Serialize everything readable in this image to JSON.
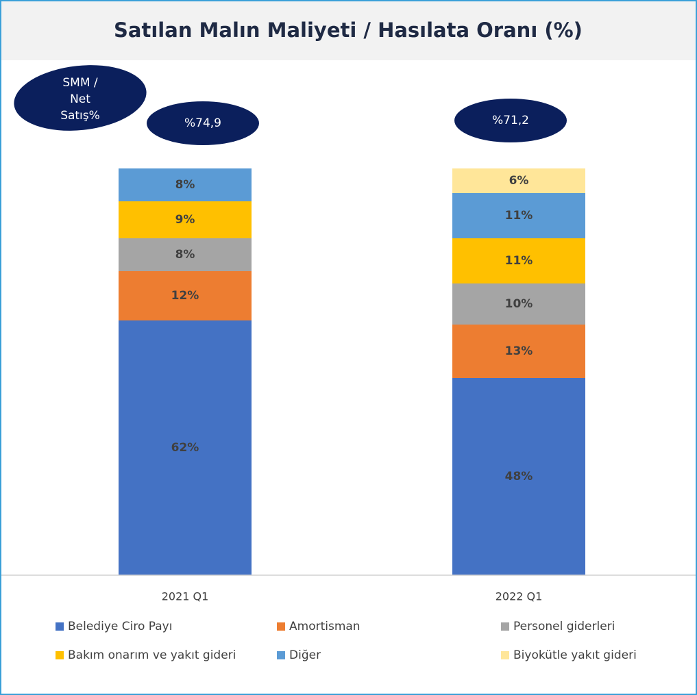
{
  "chart_data": {
    "type": "stacked_bar",
    "title": "Satılan Malın Maliyeti / Hasılata Oranı (%)",
    "categories": [
      "2021 Q1",
      "2022 Q1"
    ],
    "series": [
      {
        "name": "Belediye Ciro Payı",
        "color": "#4472c4",
        "values": [
          62,
          48
        ],
        "value_labels": [
          "62%",
          "48%"
        ]
      },
      {
        "name": "Amortisman",
        "color": "#ed7d31",
        "values": [
          12,
          13
        ],
        "value_labels": [
          "12%",
          "13%"
        ]
      },
      {
        "name": "Personel giderleri",
        "color": "#a5a5a5",
        "values": [
          8,
          10
        ],
        "value_labels": [
          "8%",
          "10%"
        ]
      },
      {
        "name": "Bakım onarım ve yakıt gideri",
        "color": "#ffc000",
        "values": [
          9,
          11
        ],
        "value_labels": [
          "9%",
          "11%"
        ]
      },
      {
        "name": "Diğer",
        "color": "#5b9bd5",
        "values": [
          8,
          11
        ],
        "value_labels": [
          "8%",
          "11%"
        ]
      },
      {
        "name": "Biyokütle yakıt gideri",
        "color": "#ffe699",
        "values": [
          null,
          6
        ],
        "value_labels": [
          null,
          "6%"
        ]
      }
    ],
    "ylim": [
      0,
      100
    ],
    "annotations": [
      {
        "lines": [
          "SMM /",
          "Net",
          "Satış%"
        ]
      },
      {
        "text": "%74,9"
      },
      {
        "text": "%71,2"
      }
    ],
    "legend": "bottom"
  }
}
